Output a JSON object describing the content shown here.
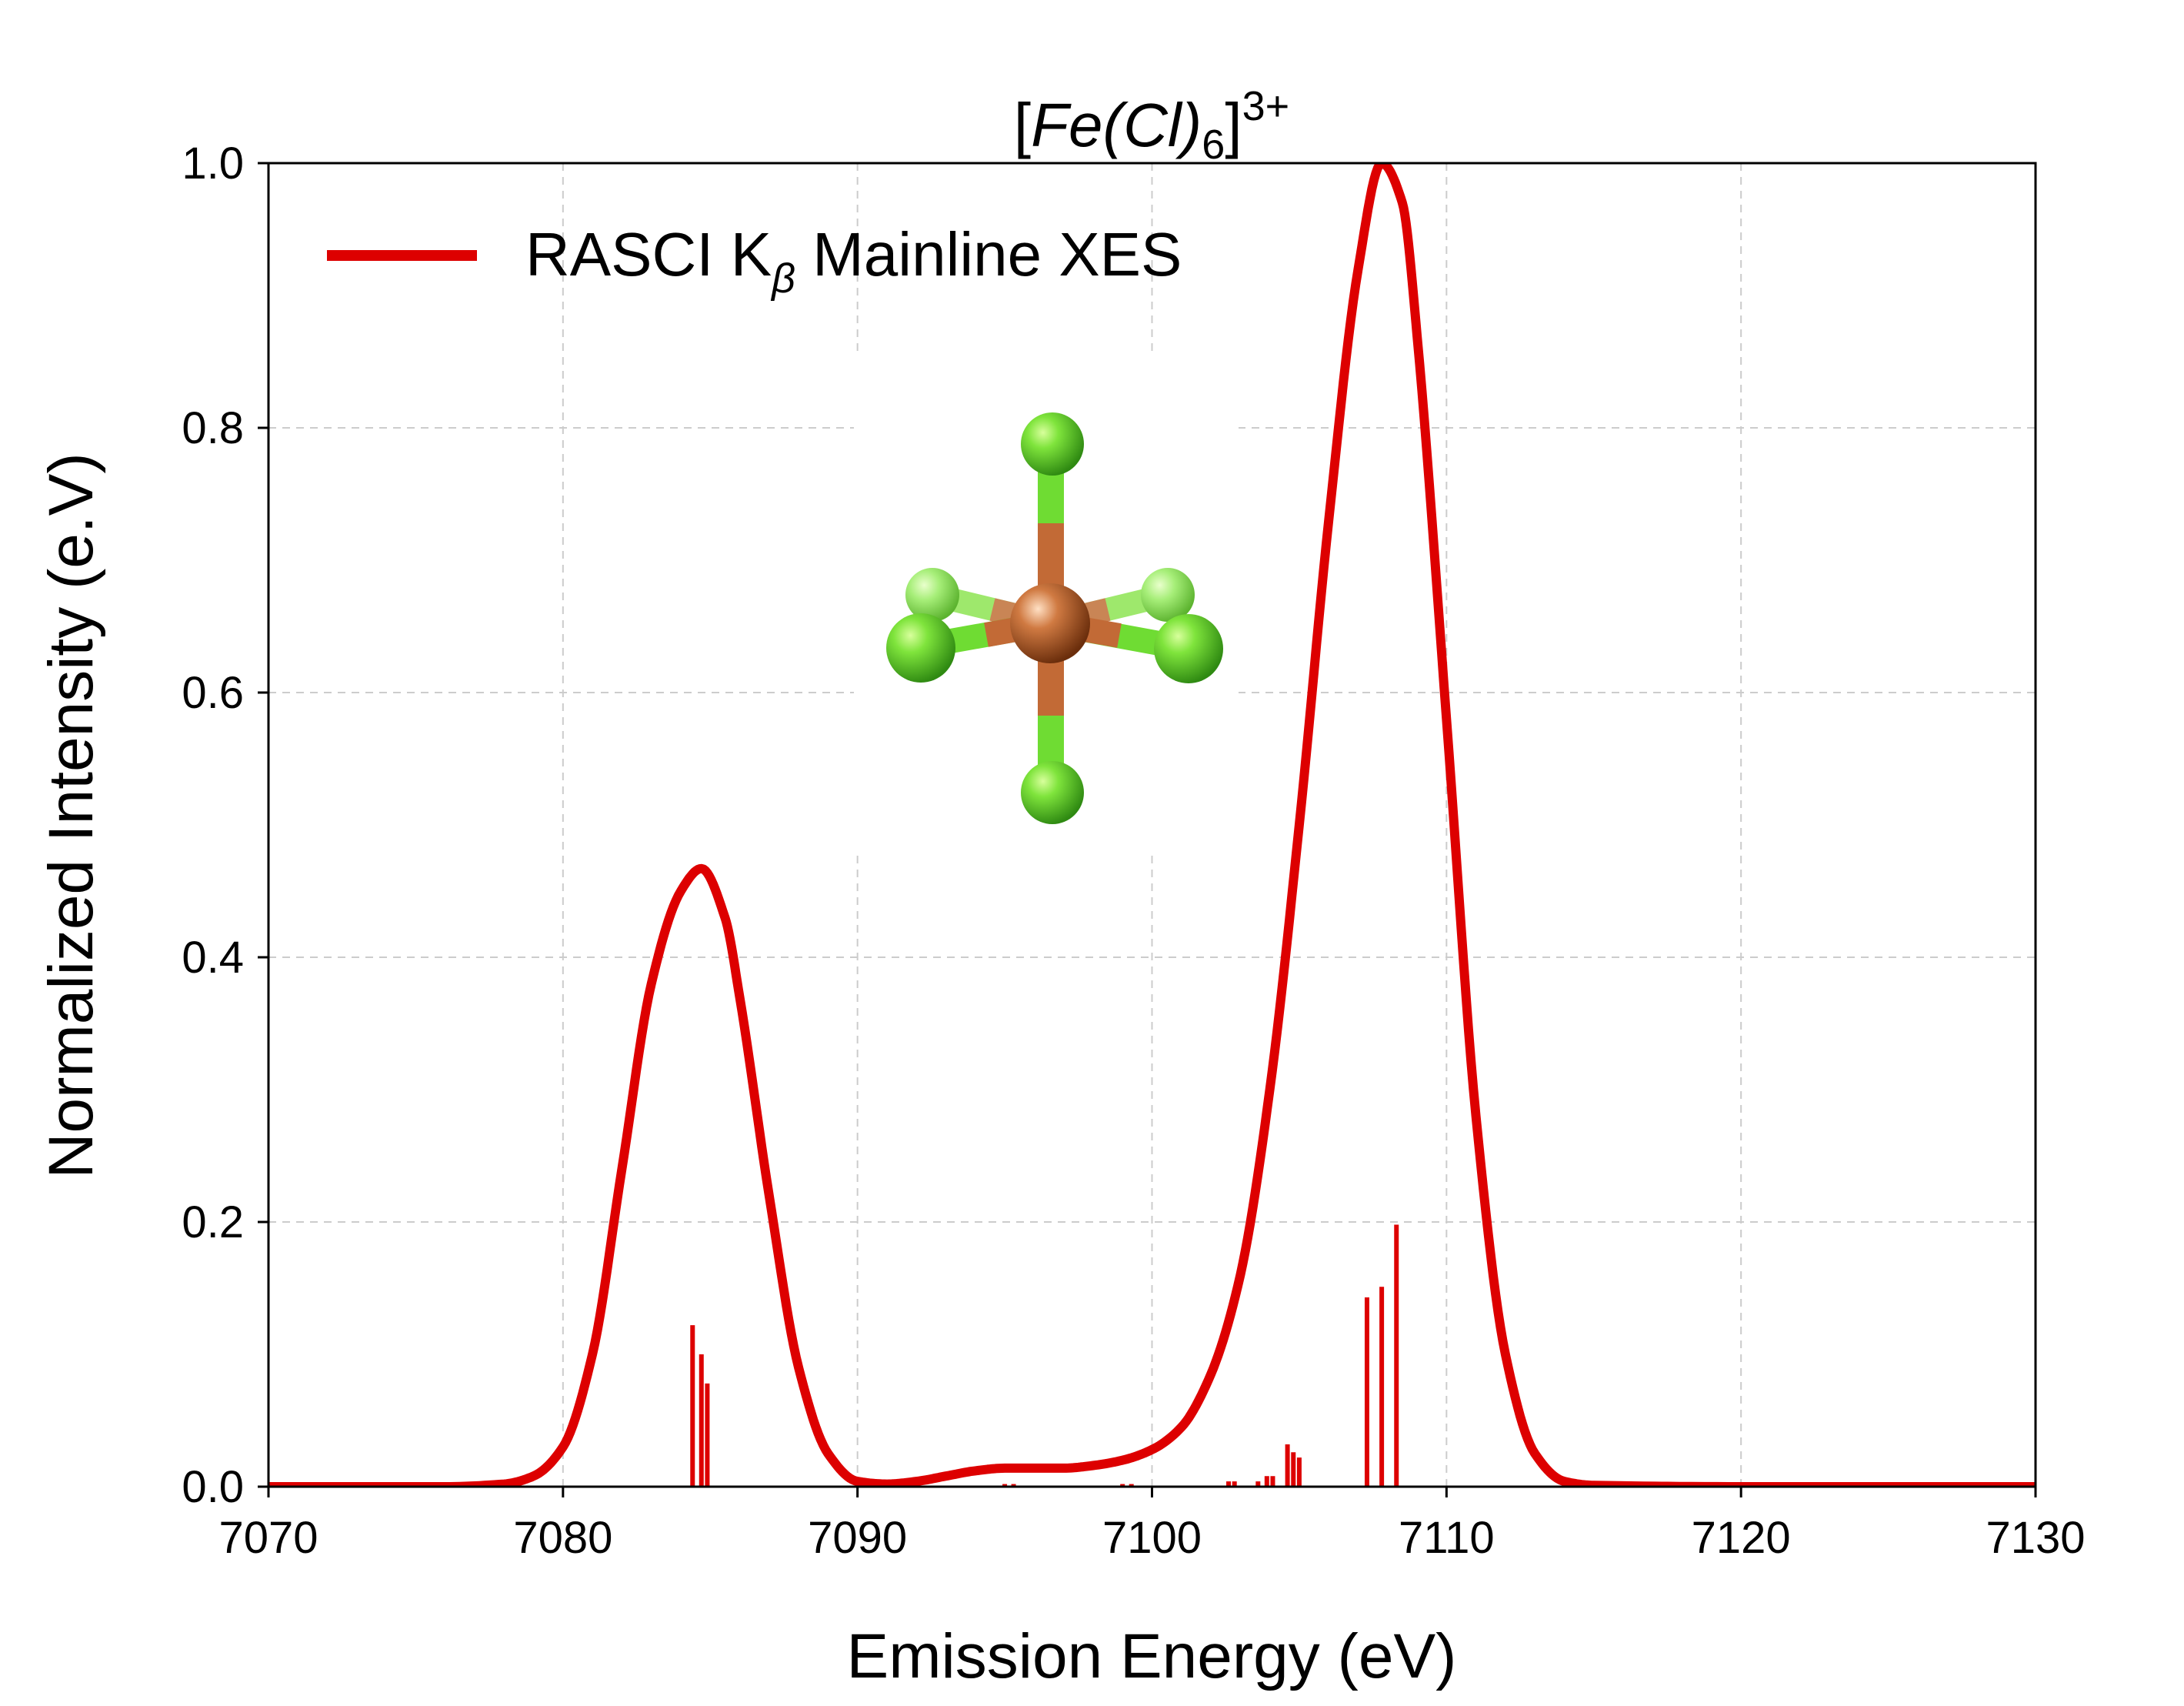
{
  "chart_data": {
    "type": "line",
    "title": {
      "prefix": "[",
      "italic": "Fe(Cl)",
      "sub": "6",
      "close": "]",
      "sup": "3+"
    },
    "xlabel": "Emission Energy (eV)",
    "ylabel": "Normalized Intensity (e.V)",
    "xlim": [
      7070,
      7130
    ],
    "ylim": [
      0,
      1.0
    ],
    "x_ticks": [
      7070,
      7080,
      7090,
      7100,
      7110,
      7120,
      7130
    ],
    "x_tick_labels": [
      "7070",
      "7080",
      "7090",
      "7100",
      "7110",
      "7120",
      "7130"
    ],
    "y_ticks": [
      0,
      0.2,
      0.4,
      0.6,
      0.8,
      1.0
    ],
    "y_tick_labels": [
      "0.0",
      "0.2",
      "0.4",
      "0.6",
      "0.8",
      "1.0"
    ],
    "grid": true,
    "legend": {
      "position": "top-left",
      "label_main": "RASCI K",
      "label_sub": "β",
      "label_rest": " Mainline XES"
    },
    "series": [
      {
        "name": "RASCI Kβ Mainline XES",
        "color": "#dd0000",
        "x": [
          7070,
          7076,
          7078,
          7079,
          7080,
          7081,
          7082,
          7083,
          7084,
          7084.7,
          7085.5,
          7086,
          7087,
          7088,
          7089,
          7090,
          7091,
          7092,
          7093,
          7094,
          7095,
          7096,
          7097,
          7098,
          7099,
          7100,
          7101,
          7102,
          7103,
          7104,
          7105,
          7106,
          7107,
          7107.8,
          7108.5,
          7109,
          7110,
          7111,
          7112,
          7113,
          7114,
          7115,
          7120,
          7130
        ],
        "y": [
          0,
          0,
          0.002,
          0.008,
          0.03,
          0.1,
          0.24,
          0.38,
          0.45,
          0.467,
          0.43,
          0.37,
          0.22,
          0.09,
          0.025,
          0.004,
          0.002,
          0.004,
          0.008,
          0.012,
          0.014,
          0.014,
          0.014,
          0.016,
          0.02,
          0.028,
          0.045,
          0.085,
          0.16,
          0.3,
          0.5,
          0.73,
          0.92,
          1.0,
          0.97,
          0.87,
          0.58,
          0.28,
          0.1,
          0.025,
          0.004,
          0.001,
          0,
          0
        ]
      }
    ],
    "sticks": {
      "color": "#dd0000",
      "x": [
        7084.4,
        7084.7,
        7084.9,
        7095,
        7095.3,
        7099,
        7099.3,
        7102.6,
        7102.8,
        7103.6,
        7103.9,
        7104.1,
        7104.6,
        7104.8,
        7105,
        7107.3,
        7107.8,
        7108.3
      ],
      "y": [
        0.122,
        0.1,
        0.078,
        0.002,
        0.002,
        0.002,
        0.002,
        0.004,
        0.004,
        0.004,
        0.008,
        0.008,
        0.032,
        0.026,
        0.022,
        0.143,
        0.151,
        0.198
      ]
    }
  },
  "inset": {
    "name": "FeCl6 molecule model",
    "center_color": "#c0703d",
    "ligand_color": "#6fdc33"
  }
}
